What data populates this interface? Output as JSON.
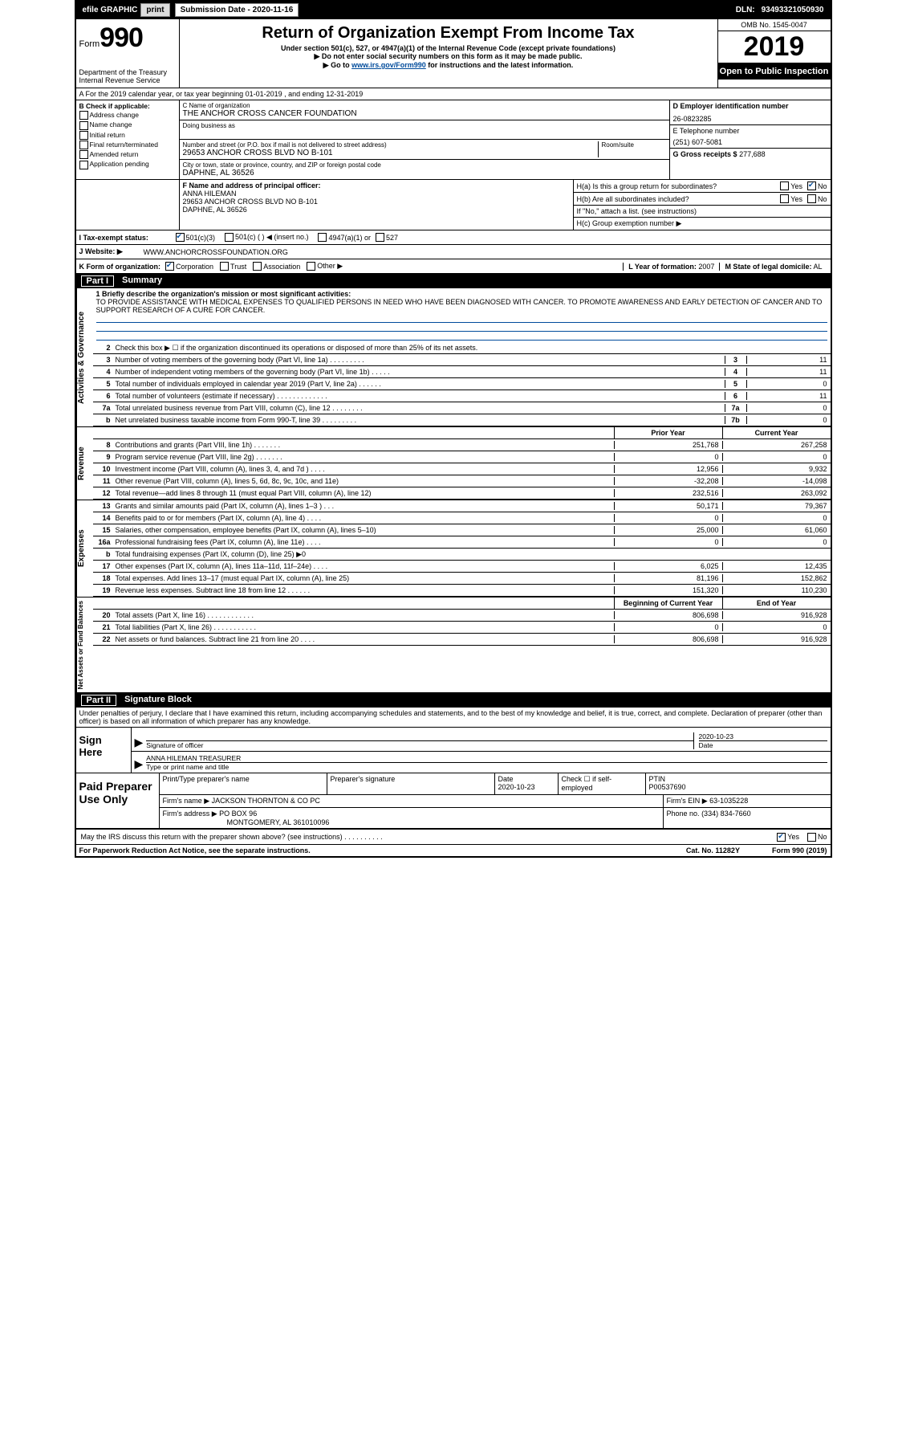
{
  "topbar": {
    "efile_label": "efile GRAPHIC",
    "print_btn": "print",
    "submission_label": "Submission Date -",
    "submission_date": "2020-11-16",
    "dln_label": "DLN:",
    "dln": "93493321050930"
  },
  "header": {
    "form_label": "Form",
    "form_number": "990",
    "dept": "Department of the Treasury",
    "irs": "Internal Revenue Service",
    "title": "Return of Organization Exempt From Income Tax",
    "subtitle": "Under section 501(c), 527, or 4947(a)(1) of the Internal Revenue Code (except private foundations)",
    "note1": "▶ Do not enter social security numbers on this form as it may be made public.",
    "note2_prefix": "▶ Go to ",
    "note2_link": "www.irs.gov/Form990",
    "note2_suffix": " for instructions and the latest information.",
    "omb": "OMB No. 1545-0047",
    "year": "2019",
    "inspection": "Open to Public Inspection"
  },
  "row_a": "A  For the 2019 calendar year, or tax year beginning 01-01-2019   , and ending 12-31-2019",
  "section_b": {
    "label": "B Check if applicable:",
    "items": [
      "Address change",
      "Name change",
      "Initial return",
      "Final return/terminated",
      "Amended return",
      "Application pending"
    ]
  },
  "section_c": {
    "name_label": "C Name of organization",
    "name": "THE ANCHOR CROSS CANCER FOUNDATION",
    "dba_label": "Doing business as",
    "addr_label": "Number and street (or P.O. box if mail is not delivered to street address)",
    "room_label": "Room/suite",
    "addr": "29653 ANCHOR CROSS BLVD NO B-101",
    "city_label": "City or town, state or province, country, and ZIP or foreign postal code",
    "city": "DAPHNE, AL  36526"
  },
  "section_d": {
    "label": "D Employer identification number",
    "ein": "26-0823285"
  },
  "section_e": {
    "label": "E Telephone number",
    "phone": "(251) 607-5081"
  },
  "section_g": {
    "label": "G Gross receipts $",
    "amount": "277,688"
  },
  "section_f": {
    "label": "F  Name and address of principal officer:",
    "name": "ANNA HILEMAN",
    "addr": "29653 ANCHOR CROSS BLVD NO B-101",
    "city": "DAPHNE, AL  36526"
  },
  "section_h": {
    "ha": "H(a)  Is this a group return for subordinates?",
    "hb": "H(b)  Are all subordinates included?",
    "hb_note": "If \"No,\" attach a list. (see instructions)",
    "hc": "H(c)  Group exemption number ▶",
    "yes": "Yes",
    "no": "No"
  },
  "section_i": {
    "label": "I    Tax-exempt status:",
    "opts": [
      "501(c)(3)",
      "501(c) (  ) ◀ (insert no.)",
      "4947(a)(1) or",
      "527"
    ]
  },
  "section_j": {
    "label": "J    Website: ▶",
    "value": "WWW.ANCHORCROSSFOUNDATION.ORG"
  },
  "section_k": {
    "label": "K Form of organization:",
    "opts": [
      "Corporation",
      "Trust",
      "Association",
      "Other ▶"
    ]
  },
  "section_l": {
    "label": "L Year of formation:",
    "value": "2007"
  },
  "section_m": {
    "label": "M State of legal domicile:",
    "value": "AL"
  },
  "part1": {
    "header": "Part I",
    "title": "Summary",
    "mission_label": "1    Briefly describe the organization's mission or most significant activities:",
    "mission": "TO PROVIDE ASSISTANCE WITH MEDICAL EXPENSES TO QUALIFIED PERSONS IN NEED WHO HAVE BEEN DIAGNOSED WITH CANCER. TO PROMOTE AWARENESS AND EARLY DETECTION OF CANCER AND TO SUPPORT RESEARCH OF A CURE FOR CANCER.",
    "line2": "Check this box ▶ ☐  if the organization discontinued its operations or disposed of more than 25% of its net assets.",
    "governance": [
      {
        "n": "3",
        "d": "Number of voting members of the governing body (Part VI, line 1a)   .   .   .   .   .   .   .   .   .",
        "b": "3",
        "v": "11"
      },
      {
        "n": "4",
        "d": "Number of independent voting members of the governing body (Part VI, line 1b)   .   .   .   .   .",
        "b": "4",
        "v": "11"
      },
      {
        "n": "5",
        "d": "Total number of individuals employed in calendar year 2019 (Part V, line 2a)   .   .   .   .   .   .",
        "b": "5",
        "v": "0"
      },
      {
        "n": "6",
        "d": "Total number of volunteers (estimate if necessary)   .   .   .   .   .   .   .   .   .   .   .   .   .",
        "b": "6",
        "v": "11"
      },
      {
        "n": "7a",
        "d": "Total unrelated business revenue from Part VIII, column (C), line 12   .   .   .   .   .   .   .   .",
        "b": "7a",
        "v": "0"
      },
      {
        "n": "b",
        "d": "Net unrelated business taxable income from Form 990-T, line 39   .   .   .   .   .   .   .   .   .",
        "b": "7b",
        "v": "0"
      }
    ],
    "prior_label": "Prior Year",
    "current_label": "Current Year",
    "revenue": [
      {
        "n": "8",
        "d": "Contributions and grants (Part VIII, line 1h)   .   .   .   .   .   .   .",
        "p": "251,768",
        "c": "267,258"
      },
      {
        "n": "9",
        "d": "Program service revenue (Part VIII, line 2g)   .   .   .   .   .   .   .",
        "p": "0",
        "c": "0"
      },
      {
        "n": "10",
        "d": "Investment income (Part VIII, column (A), lines 3, 4, and 7d )   .   .   .   .",
        "p": "12,956",
        "c": "9,932"
      },
      {
        "n": "11",
        "d": "Other revenue (Part VIII, column (A), lines 5, 6d, 8c, 9c, 10c, and 11e)",
        "p": "-32,208",
        "c": "-14,098"
      },
      {
        "n": "12",
        "d": "Total revenue—add lines 8 through 11 (must equal Part VIII, column (A), line 12)",
        "p": "232,516",
        "c": "263,092"
      }
    ],
    "expenses": [
      {
        "n": "13",
        "d": "Grants and similar amounts paid (Part IX, column (A), lines 1–3 )   .   .   .",
        "p": "50,171",
        "c": "79,367"
      },
      {
        "n": "14",
        "d": "Benefits paid to or for members (Part IX, column (A), line 4)   .   .   .   .",
        "p": "0",
        "c": "0"
      },
      {
        "n": "15",
        "d": "Salaries, other compensation, employee benefits (Part IX, column (A), lines 5–10)",
        "p": "25,000",
        "c": "61,060"
      },
      {
        "n": "16a",
        "d": "Professional fundraising fees (Part IX, column (A), line 11e)   .   .   .   .",
        "p": "0",
        "c": "0"
      },
      {
        "n": "b",
        "d": "Total fundraising expenses (Part IX, column (D), line 25) ▶0",
        "p": "",
        "c": "",
        "grey": true
      },
      {
        "n": "17",
        "d": "Other expenses (Part IX, column (A), lines 11a–11d, 11f–24e)   .   .   .   .",
        "p": "6,025",
        "c": "12,435"
      },
      {
        "n": "18",
        "d": "Total expenses. Add lines 13–17 (must equal Part IX, column (A), line 25)",
        "p": "81,196",
        "c": "152,862"
      },
      {
        "n": "19",
        "d": "Revenue less expenses. Subtract line 18 from line 12   .   .   .   .   .   .",
        "p": "151,320",
        "c": "110,230"
      }
    ],
    "netassets_header": {
      "p": "Beginning of Current Year",
      "c": "End of Year"
    },
    "netassets": [
      {
        "n": "20",
        "d": "Total assets (Part X, line 16)   .   .   .   .   .   .   .   .   .   .   .   .",
        "p": "806,698",
        "c": "916,928"
      },
      {
        "n": "21",
        "d": "Total liabilities (Part X, line 26)   .   .   .   .   .   .   .   .   .   .   .",
        "p": "0",
        "c": "0"
      },
      {
        "n": "22",
        "d": "Net assets or fund balances. Subtract line 21 from line 20   .   .   .   .",
        "p": "806,698",
        "c": "916,928"
      }
    ],
    "side_labels": {
      "gov": "Activities & Governance",
      "rev": "Revenue",
      "exp": "Expenses",
      "net": "Net Assets or Fund Balances"
    }
  },
  "part2": {
    "header": "Part II",
    "title": "Signature Block",
    "declaration": "Under penalties of perjury, I declare that I have examined this return, including accompanying schedules and statements, and to the best of my knowledge and belief, it is true, correct, and complete. Declaration of preparer (other than officer) is based on all information of which preparer has any knowledge.",
    "sign_here": "Sign Here",
    "sig_officer_label": "Signature of officer",
    "date_label": "Date",
    "sig_date": "2020-10-23",
    "print_name": "ANNA HILEMAN  TREASURER",
    "print_name_label": "Type or print name and title",
    "paid_preparer": "Paid Preparer Use Only",
    "prep_name_label": "Print/Type preparer's name",
    "prep_sig_label": "Preparer's signature",
    "prep_date_label": "Date",
    "prep_date": "2020-10-23",
    "check_self": "Check ☐ if self-employed",
    "ptin_label": "PTIN",
    "ptin": "P00537690",
    "firm_name_label": "Firm's name    ▶",
    "firm_name": "JACKSON THORNTON & CO PC",
    "firm_ein_label": "Firm's EIN ▶",
    "firm_ein": "63-1035228",
    "firm_addr_label": "Firm's address ▶",
    "firm_addr1": "PO BOX 96",
    "firm_addr2": "MONTGOMERY, AL  361010096",
    "firm_phone_label": "Phone no.",
    "firm_phone": "(334) 834-7660",
    "discuss": "May the IRS discuss this return with the preparer shown above? (see instructions)   .   .   .   .   .   .   .   .   .   .",
    "discuss_yes": "Yes",
    "discuss_no": "No"
  },
  "footer": {
    "paperwork": "For Paperwork Reduction Act Notice, see the separate instructions.",
    "cat": "Cat. No. 11282Y",
    "form": "Form 990 (2019)"
  }
}
